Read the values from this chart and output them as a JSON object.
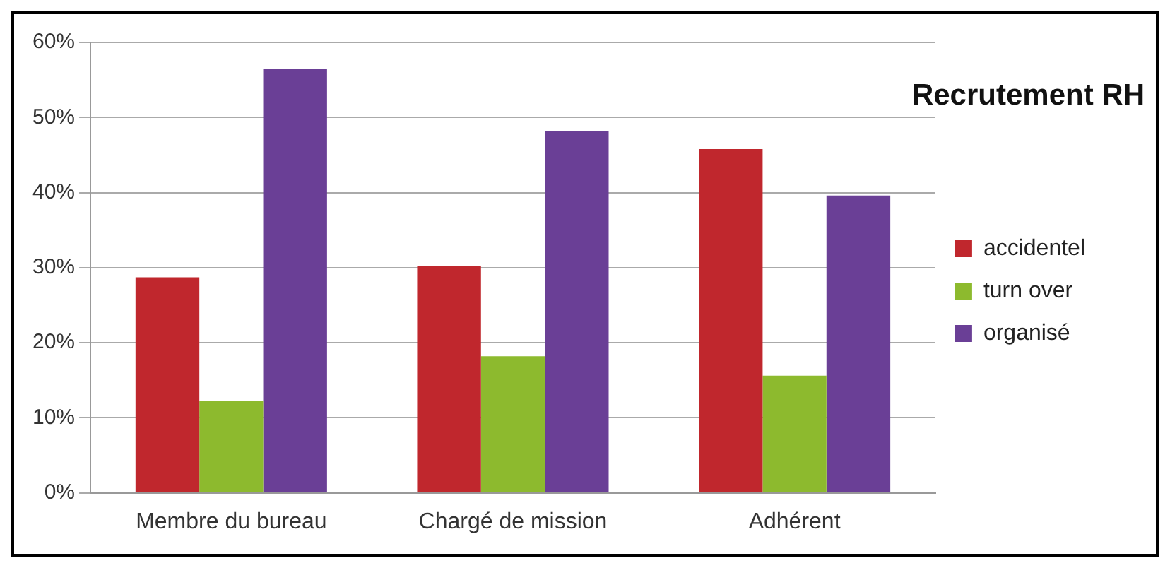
{
  "chart_data": {
    "type": "bar",
    "title": "Recrutement RH",
    "categories": [
      "Membre du bureau",
      "Chargé de mission",
      "Adhérent"
    ],
    "series": [
      {
        "name": "accidentel",
        "color": "#c0272d",
        "values": [
          28.7,
          30.2,
          45.8
        ]
      },
      {
        "name": "turn over",
        "color": "#8dba2e",
        "values": [
          12.2,
          18.2,
          15.6
        ]
      },
      {
        "name": "organisé",
        "color": "#6a3f96",
        "values": [
          56.5,
          48.2,
          39.6
        ]
      }
    ],
    "ylim": [
      0,
      60
    ],
    "yticks": [
      {
        "value": 0,
        "label": "0%"
      },
      {
        "value": 10,
        "label": "10%"
      },
      {
        "value": 20,
        "label": "20%"
      },
      {
        "value": 30,
        "label": "30%"
      },
      {
        "value": 40,
        "label": "40%"
      },
      {
        "value": 50,
        "label": "50%"
      },
      {
        "value": 60,
        "label": "60%"
      }
    ],
    "grid": "y",
    "legend": "right"
  }
}
